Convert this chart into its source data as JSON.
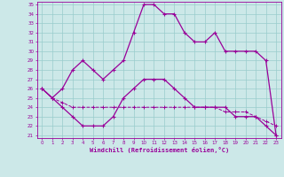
{
  "xlabel": "Windchill (Refroidissement éolien,°C)",
  "hours": [
    0,
    1,
    2,
    3,
    4,
    5,
    6,
    7,
    8,
    9,
    10,
    11,
    12,
    13,
    14,
    15,
    16,
    17,
    18,
    19,
    20,
    21,
    22,
    23
  ],
  "upper": [
    26,
    25,
    26,
    28,
    29,
    28,
    27,
    28,
    29,
    32,
    35,
    35,
    34,
    34,
    32,
    31,
    31,
    32,
    30,
    30,
    30,
    30,
    29,
    21
  ],
  "lower": [
    26,
    25,
    24,
    23,
    22,
    22,
    22,
    23,
    25,
    26,
    27,
    27,
    27,
    26,
    25,
    24,
    24,
    24,
    24,
    23,
    23,
    23,
    22,
    21
  ],
  "flat": [
    26,
    25,
    24.5,
    24,
    24,
    24,
    24,
    24,
    24,
    24,
    24,
    24,
    24,
    24,
    24,
    24,
    24,
    24,
    23.5,
    23.5,
    23.5,
    23,
    22.5,
    22
  ],
  "ylim": [
    21,
    35
  ],
  "xlim": [
    0,
    23
  ],
  "yticks": [
    21,
    22,
    23,
    24,
    25,
    26,
    27,
    28,
    29,
    30,
    31,
    32,
    33,
    34,
    35
  ],
  "xticks": [
    0,
    1,
    2,
    3,
    4,
    5,
    6,
    7,
    8,
    9,
    10,
    11,
    12,
    13,
    14,
    15,
    16,
    17,
    18,
    19,
    20,
    21,
    22,
    23
  ],
  "line_color": "#990099",
  "bg_color": "#cce8e8",
  "grid_color": "#99cccc"
}
